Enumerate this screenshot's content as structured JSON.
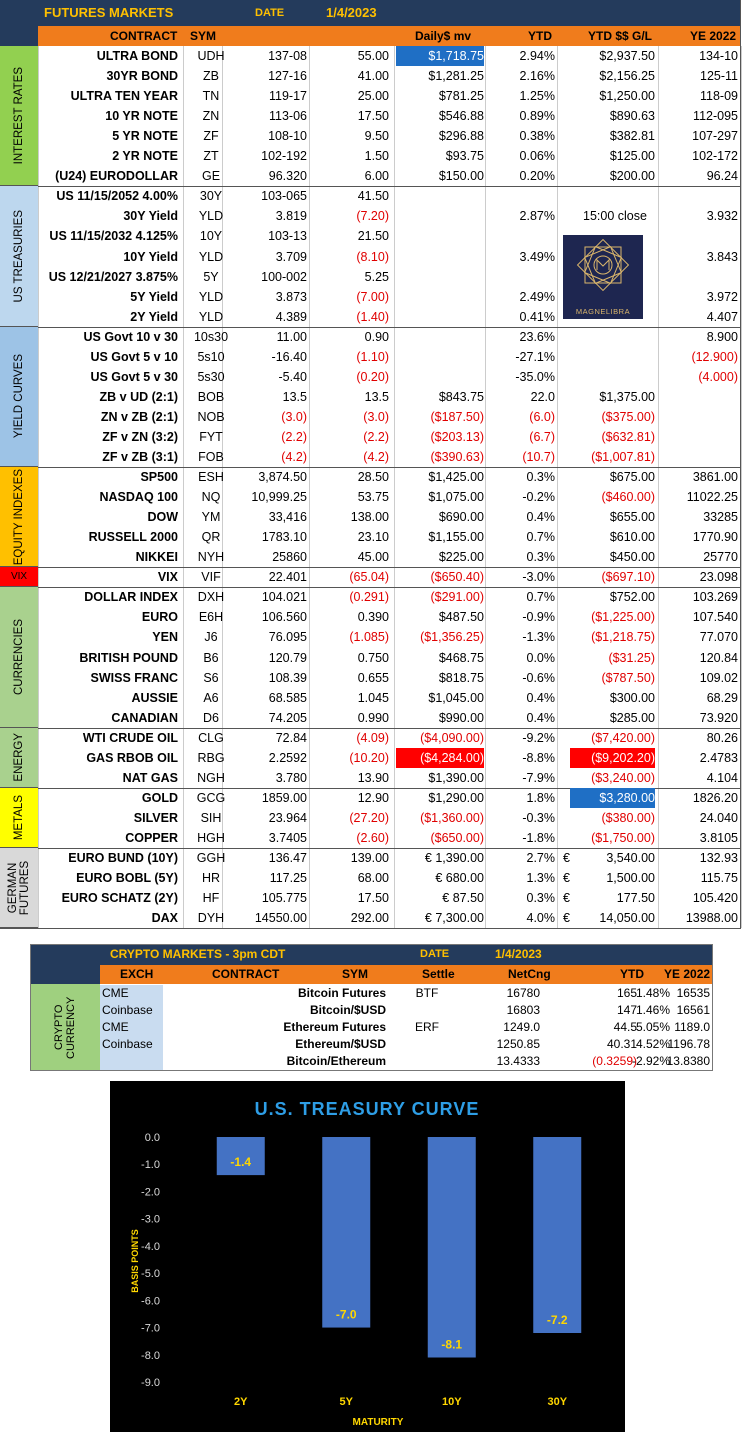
{
  "futures": {
    "title": "FUTURES MARKETS",
    "date_label": "DATE",
    "date": "1/4/2023",
    "columns": [
      "CONTRACT",
      "SYM",
      "Daily$ mv",
      "YTD",
      "YTD $$ G/L",
      "YE 2022"
    ],
    "sections": [
      "INTEREST RATES",
      "US TREASURIES",
      "YIELD CURVES",
      "EQUITY INDEXES",
      "VIX",
      "CURRENCIES",
      "ENERGY",
      "METALS",
      "GERMAN FUTURES"
    ],
    "section_colors": {
      "interest_rates": "#92d050",
      "treasuries": "#bdd7ee",
      "yield_curves": "#9dc3e6",
      "equity": "#ffc000",
      "vix": "#ff0000",
      "currencies": "#a9d18e",
      "energy": "#a9d18e",
      "metals": "#ffff00",
      "german": "#d9d9d9"
    },
    "rows": [
      {
        "contract": "ULTRA BOND",
        "sym": "UDH",
        "price": "137-08",
        "chg": "55.00",
        "dmv": "$1,718.75",
        "ytd": "2.94%",
        "ytdgl": "$2,937.50",
        "ye": "134-10",
        "hl_dmv": "blue"
      },
      {
        "contract": "30YR BOND",
        "sym": "ZB",
        "price": "127-16",
        "chg": "41.00",
        "dmv": "$1,281.25",
        "ytd": "2.16%",
        "ytdgl": "$2,156.25",
        "ye": "125-11"
      },
      {
        "contract": "ULTRA TEN YEAR",
        "sym": "TN",
        "price": "119-17",
        "chg": "25.00",
        "dmv": "$781.25",
        "ytd": "1.25%",
        "ytdgl": "$1,250.00",
        "ye": "118-09"
      },
      {
        "contract": "10 YR NOTE",
        "sym": "ZN",
        "price": "113-06",
        "chg": "17.50",
        "dmv": "$546.88",
        "ytd": "0.89%",
        "ytdgl": "$890.63",
        "ye": "112-095"
      },
      {
        "contract": "5 YR NOTE",
        "sym": "ZF",
        "price": "108-10",
        "chg": "9.50",
        "dmv": "$296.88",
        "ytd": "0.38%",
        "ytdgl": "$382.81",
        "ye": "107-297"
      },
      {
        "contract": "2 YR NOTE",
        "sym": "ZT",
        "price": "102-192",
        "chg": "1.50",
        "dmv": "$93.75",
        "ytd": "0.06%",
        "ytdgl": "$125.00",
        "ye": "102-172"
      },
      {
        "contract": "(U24) EURODOLLAR",
        "sym": "GE",
        "price": "96.320",
        "chg": "6.00",
        "dmv": "$150.00",
        "ytd": "0.20%",
        "ytdgl": "$200.00",
        "ye": "96.24"
      },
      {
        "contract": "US 11/15/2052 4.00%",
        "sym": "30Y",
        "price": "103-065",
        "chg": "41.50",
        "dmv": "",
        "ytd": "",
        "ytdgl": "",
        "ye": ""
      },
      {
        "contract": "30Y Yield",
        "sym": "YLD",
        "price": "3.819",
        "chg": "(7.20)",
        "dmv": "",
        "ytd": "2.87%",
        "ytdgl": "",
        "ye": "3.932",
        "note": "15:00 close"
      },
      {
        "contract": "US 11/15/2032 4.125%",
        "sym": "10Y",
        "price": "103-13",
        "chg": "21.50",
        "dmv": "",
        "ytd": "",
        "ytdgl": "",
        "ye": ""
      },
      {
        "contract": "10Y Yield",
        "sym": "YLD",
        "price": "3.709",
        "chg": "(8.10)",
        "dmv": "",
        "ytd": "3.49%",
        "ytdgl": "",
        "ye": "3.843"
      },
      {
        "contract": "US 12/21/2027 3.875%",
        "sym": "5Y",
        "price": "100-002",
        "chg": "5.25",
        "dmv": "",
        "ytd": "",
        "ytdgl": "",
        "ye": ""
      },
      {
        "contract": "5Y Yield",
        "sym": "YLD",
        "price": "3.873",
        "chg": "(7.00)",
        "dmv": "",
        "ytd": "2.49%",
        "ytdgl": "",
        "ye": "3.972"
      },
      {
        "contract": "2Y Yield",
        "sym": "YLD",
        "price": "4.389",
        "chg": "(1.40)",
        "dmv": "",
        "ytd": "0.41%",
        "ytdgl": "",
        "ye": "4.407"
      },
      {
        "contract": "US Govt 10 v 30",
        "sym": "10s30",
        "price": "11.00",
        "chg": "0.90",
        "dmv": "",
        "ytd": "23.6%",
        "ytdgl": "",
        "ye": "8.900"
      },
      {
        "contract": "US Govt 5 v 10",
        "sym": "5s10",
        "price": "-16.40",
        "chg": "(1.10)",
        "dmv": "",
        "ytd": "-27.1%",
        "ytdgl": "",
        "ye": "(12.900)"
      },
      {
        "contract": "US Govt 5 v 30",
        "sym": "5s30",
        "price": "-5.40",
        "chg": "(0.20)",
        "dmv": "",
        "ytd": "-35.0%",
        "ytdgl": "",
        "ye": "(4.000)"
      },
      {
        "contract": "ZB v UD (2:1)",
        "sym": "BOB",
        "price": "13.5",
        "chg": "13.5",
        "dmv": "$843.75",
        "ytd": "22.0",
        "ytdgl": "$1,375.00",
        "ye": ""
      },
      {
        "contract": "ZN v ZB (2:1)",
        "sym": "NOB",
        "price": "(3.0)",
        "chg": "(3.0)",
        "dmv": "($187.50)",
        "ytd": "(6.0)",
        "ytdgl": "($375.00)",
        "ye": ""
      },
      {
        "contract": "ZF v ZN (3:2)",
        "sym": "FYT",
        "price": "(2.2)",
        "chg": "(2.2)",
        "dmv": "($203.13)",
        "ytd": "(6.7)",
        "ytdgl": "($632.81)",
        "ye": ""
      },
      {
        "contract": "ZF v ZB (3:1)",
        "sym": "FOB",
        "price": "(4.2)",
        "chg": "(4.2)",
        "dmv": "($390.63)",
        "ytd": "(10.7)",
        "ytdgl": "($1,007.81)",
        "ye": ""
      },
      {
        "contract": "SP500",
        "sym": "ESH",
        "price": "3,874.50",
        "chg": "28.50",
        "dmv": "$1,425.00",
        "ytd": "0.3%",
        "ytdgl": "$675.00",
        "ye": "3861.00"
      },
      {
        "contract": "NASDAQ 100",
        "sym": "NQ",
        "price": "10,999.25",
        "chg": "53.75",
        "dmv": "$1,075.00",
        "ytd": "-0.2%",
        "ytdgl": "($460.00)",
        "ye": "11022.25"
      },
      {
        "contract": "DOW",
        "sym": "YM",
        "price": "33,416",
        "chg": "138.00",
        "dmv": "$690.00",
        "ytd": "0.4%",
        "ytdgl": "$655.00",
        "ye": "33285"
      },
      {
        "contract": "RUSSELL 2000",
        "sym": "QR",
        "price": "1783.10",
        "chg": "23.10",
        "dmv": "$1,155.00",
        "ytd": "0.7%",
        "ytdgl": "$610.00",
        "ye": "1770.90"
      },
      {
        "contract": "NIKKEI",
        "sym": "NYH",
        "price": "25860",
        "chg": "45.00",
        "dmv": "$225.00",
        "ytd": "0.3%",
        "ytdgl": "$450.00",
        "ye": "25770"
      },
      {
        "contract": "VIX",
        "sym": "VIF",
        "price": "22.401",
        "chg": "(65.04)",
        "dmv": "($650.40)",
        "ytd": "-3.0%",
        "ytdgl": "($697.10)",
        "ye": "23.098"
      },
      {
        "contract": "DOLLAR INDEX",
        "sym": "DXH",
        "price": "104.021",
        "chg": "(0.291)",
        "dmv": "($291.00)",
        "ytd": "0.7%",
        "ytdgl": "$752.00",
        "ye": "103.269"
      },
      {
        "contract": "EURO",
        "sym": "E6H",
        "price": "106.560",
        "chg": "0.390",
        "dmv": "$487.50",
        "ytd": "-0.9%",
        "ytdgl": "($1,225.00)",
        "ye": "107.540"
      },
      {
        "contract": "YEN",
        "sym": "J6",
        "price": "76.095",
        "chg": "(1.085)",
        "dmv": "($1,356.25)",
        "ytd": "-1.3%",
        "ytdgl": "($1,218.75)",
        "ye": "77.070"
      },
      {
        "contract": "BRITISH POUND",
        "sym": "B6",
        "price": "120.79",
        "chg": "0.750",
        "dmv": "$468.75",
        "ytd": "0.0%",
        "ytdgl": "($31.25)",
        "ye": "120.84"
      },
      {
        "contract": "SWISS FRANC",
        "sym": "S6",
        "price": "108.39",
        "chg": "0.655",
        "dmv": "$818.75",
        "ytd": "-0.6%",
        "ytdgl": "($787.50)",
        "ye": "109.02"
      },
      {
        "contract": "AUSSIE",
        "sym": "A6",
        "price": "68.585",
        "chg": "1.045",
        "dmv": "$1,045.00",
        "ytd": "0.4%",
        "ytdgl": "$300.00",
        "ye": "68.29"
      },
      {
        "contract": "CANADIAN",
        "sym": "D6",
        "price": "74.205",
        "chg": "0.990",
        "dmv": "$990.00",
        "ytd": "0.4%",
        "ytdgl": "$285.00",
        "ye": "73.920"
      },
      {
        "contract": "WTI CRUDE OIL",
        "sym": "CLG",
        "price": "72.84",
        "chg": "(4.09)",
        "dmv": "($4,090.00)",
        "ytd": "-9.2%",
        "ytdgl": "($7,420.00)",
        "ye": "80.26"
      },
      {
        "contract": "GAS RBOB OIL",
        "sym": "RBG",
        "price": "2.2592",
        "chg": "(10.20)",
        "dmv": "($4,284.00)",
        "ytd": "-8.8%",
        "ytdgl": "($9,202.20)",
        "ye": "2.4783",
        "hl_dmv": "red",
        "hl_ytdgl": "red"
      },
      {
        "contract": "NAT GAS",
        "sym": "NGH",
        "price": "3.780",
        "chg": "13.90",
        "dmv": "$1,390.00",
        "ytd": "-7.9%",
        "ytdgl": "($3,240.00)",
        "ye": "4.104"
      },
      {
        "contract": "GOLD",
        "sym": "GCG",
        "price": "1859.00",
        "chg": "12.90",
        "dmv": "$1,290.00",
        "ytd": "1.8%",
        "ytdgl": "$3,280.00",
        "ye": "1826.20",
        "hl_ytdgl": "blue"
      },
      {
        "contract": "SILVER",
        "sym": "SIH",
        "price": "23.964",
        "chg": "(27.20)",
        "dmv": "($1,360.00)",
        "ytd": "-0.3%",
        "ytdgl": "($380.00)",
        "ye": "24.040"
      },
      {
        "contract": "COPPER",
        "sym": "HGH",
        "price": "3.7405",
        "chg": "(2.60)",
        "dmv": "($650.00)",
        "ytd": "-1.8%",
        "ytdgl": "($1,750.00)",
        "ye": "3.8105"
      },
      {
        "contract": "EURO BUND (10Y)",
        "sym": "GGH",
        "price": "136.47",
        "chg": "139.00",
        "dmv": "€ 1,390.00",
        "ytd": "2.7%",
        "eur": "€",
        "ytdgl": "3,540.00",
        "ye": "132.93"
      },
      {
        "contract": "EURO BOBL (5Y)",
        "sym": "HR",
        "price": "117.25",
        "chg": "68.00",
        "dmv": "€ 680.00",
        "ytd": "1.3%",
        "eur": "€",
        "ytdgl": "1,500.00",
        "ye": "115.75"
      },
      {
        "contract": "EURO SCHATZ (2Y)",
        "sym": "HF",
        "price": "105.775",
        "chg": "17.50",
        "dmv": "€ 87.50",
        "ytd": "0.3%",
        "eur": "€",
        "ytdgl": "177.50",
        "ye": "105.420"
      },
      {
        "contract": "DAX",
        "sym": "DYH",
        "price": "14550.00",
        "chg": "292.00",
        "dmv": "€ 7,300.00",
        "ytd": "4.0%",
        "eur": "€",
        "ytdgl": "14,050.00",
        "ye": "13988.00"
      }
    ]
  },
  "logo_text": "MAGNELIBRA",
  "crypto": {
    "title": "CRYPTO MARKETS - 3pm CDT",
    "date_label": "DATE",
    "date": "1/4/2023",
    "columns": [
      "EXCH",
      "CONTRACT",
      "SYM",
      "Settle",
      "NetCng",
      "YTD",
      "YE 2022"
    ],
    "section": "CRYPTO CURRENCY",
    "rows": [
      {
        "exch": "CME",
        "contract": "Bitcoin Futures",
        "sym": "BTF",
        "settle": "16780",
        "net": "165",
        "ytd": "1.48%",
        "ye": "16535"
      },
      {
        "exch": "Coinbase",
        "contract": "Bitcoin/$USD",
        "sym": "",
        "settle": "16803",
        "net": "147",
        "ytd": "1.46%",
        "ye": "16561"
      },
      {
        "exch": "CME",
        "contract": "Ethereum Futures",
        "sym": "ERF",
        "settle": "1249.0",
        "net": "44.5",
        "ytd": "5.05%",
        "ye": "1189.0"
      },
      {
        "exch": "Coinbase",
        "contract": "Ethereum/$USD",
        "sym": "",
        "settle": "1250.85",
        "net": "40.31",
        "ytd": "4.52%",
        "ye": "1196.78"
      },
      {
        "exch": "",
        "contract": "Bitcoin/Ethereum",
        "sym": "",
        "settle": "13.4333",
        "net": "(0.3259)",
        "ytd": "-2.92%",
        "ye": "13.8380"
      }
    ]
  },
  "chart_data": {
    "type": "bar",
    "title": "U.S. TREASURY CURVE",
    "xlabel": "MATURITY",
    "ylabel": "BASIS POINTS",
    "categories": [
      "2Y",
      "5Y",
      "10Y",
      "30Y"
    ],
    "values": [
      -1.4,
      -7.0,
      -8.1,
      -7.2
    ],
    "data_labels": [
      "-1.4",
      "-7.0",
      "-8.1",
      "-7.2"
    ],
    "ylim": [
      -9.0,
      0.0
    ],
    "yticks": [
      "0.0",
      "-1.0",
      "-2.0",
      "-3.0",
      "-4.0",
      "-5.0",
      "-6.0",
      "-7.0",
      "-8.0",
      "-9.0"
    ],
    "colors": {
      "background": "#000000",
      "bar": "#4472c4",
      "title": "#2e9ee6",
      "labels": "#ffd700",
      "ticks": "#d9d9d9"
    }
  }
}
